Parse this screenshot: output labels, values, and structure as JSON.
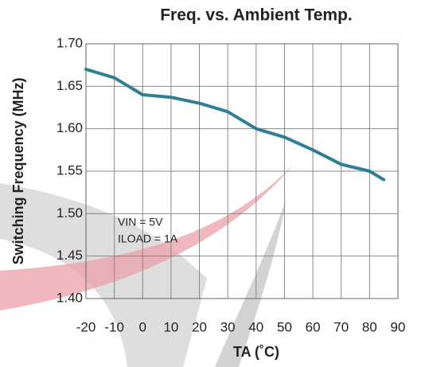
{
  "chart_data": {
    "type": "line",
    "title": "Freq. vs. Ambient Temp.",
    "x_label": "TA (˚C)",
    "y_label": "Switching Frequency (MHz)",
    "annotations": [
      "VIN = 5V",
      "ILOAD = 1A"
    ],
    "x": [
      -20,
      -10,
      -5,
      0,
      10,
      20,
      30,
      40,
      50,
      60,
      70,
      80,
      85
    ],
    "series": [
      {
        "name": "Switching Frequency",
        "color": "#2e7f95",
        "values": [
          1.67,
          1.66,
          1.65,
          1.64,
          1.637,
          1.63,
          1.62,
          1.6,
          1.59,
          1.575,
          1.558,
          1.55,
          1.54
        ]
      }
    ],
    "xlim": [
      -20,
      90
    ],
    "xticks": [
      -20,
      -10,
      0,
      10,
      20,
      30,
      40,
      50,
      60,
      70,
      80,
      90
    ],
    "ylim": [
      1.4,
      1.7
    ],
    "yticks": [
      {
        "value": 1.4,
        "label": "1.40"
      },
      1.45,
      {
        "value": 1.5,
        "label": "1.50"
      },
      1.55,
      {
        "value": 1.6,
        "label": "1.60"
      },
      1.65,
      {
        "value": 1.7,
        "label": "1.70"
      }
    ],
    "grid": true
  }
}
